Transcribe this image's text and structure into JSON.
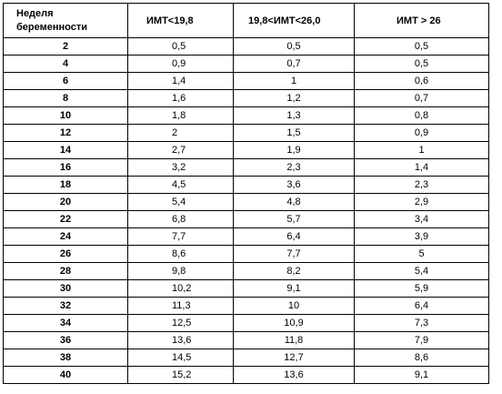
{
  "table": {
    "headers": {
      "week_line1": "Неделя",
      "week_line2": "беременности",
      "col1": "ИМТ<19,8",
      "col2": "19,8<ИМТ<26,0",
      "col3": "ИМТ > 26"
    },
    "rows": [
      {
        "week": "2",
        "v1": "0,5",
        "v2": "0,5",
        "v3": "0,5"
      },
      {
        "week": "4",
        "v1": "0,9",
        "v2": "0,7",
        "v3": "0,5"
      },
      {
        "week": "6",
        "v1": "1,4",
        "v2": "1",
        "v3": "0,6"
      },
      {
        "week": "8",
        "v1": "1,6",
        "v2": "1,2",
        "v3": "0,7"
      },
      {
        "week": "10",
        "v1": "1,8",
        "v2": "1,3",
        "v3": "0,8"
      },
      {
        "week": "12",
        "v1": "2",
        "v2": "1,5",
        "v3": "0,9"
      },
      {
        "week": "14",
        "v1": "2,7",
        "v2": "1,9",
        "v3": "1"
      },
      {
        "week": "16",
        "v1": "3,2",
        "v2": "2,3",
        "v3": "1,4"
      },
      {
        "week": "18",
        "v1": "4,5",
        "v2": "3,6",
        "v3": "2,3"
      },
      {
        "week": "20",
        "v1": "5,4",
        "v2": "4,8",
        "v3": "2,9"
      },
      {
        "week": "22",
        "v1": "6,8",
        "v2": "5,7",
        "v3": "3,4"
      },
      {
        "week": "24",
        "v1": "7,7",
        "v2": "6,4",
        "v3": "3,9"
      },
      {
        "week": "26",
        "v1": "8,6",
        "v2": "7,7",
        "v3": "5"
      },
      {
        "week": "28",
        "v1": "9,8",
        "v2": "8,2",
        "v3": "5,4"
      },
      {
        "week": "30",
        "v1": "10,2",
        "v2": "9,1",
        "v3": "5,9"
      },
      {
        "week": "32",
        "v1": "11,3",
        "v2": "10",
        "v3": "6,4"
      },
      {
        "week": "34",
        "v1": "12,5",
        "v2": "10,9",
        "v3": "7,3"
      },
      {
        "week": "36",
        "v1": "13,6",
        "v2": "11,8",
        "v3": "7,9"
      },
      {
        "week": "38",
        "v1": "14,5",
        "v2": "12,7",
        "v3": "8,6"
      },
      {
        "week": "40",
        "v1": "15,2",
        "v2": "13,6",
        "v3": "9,1"
      }
    ]
  }
}
